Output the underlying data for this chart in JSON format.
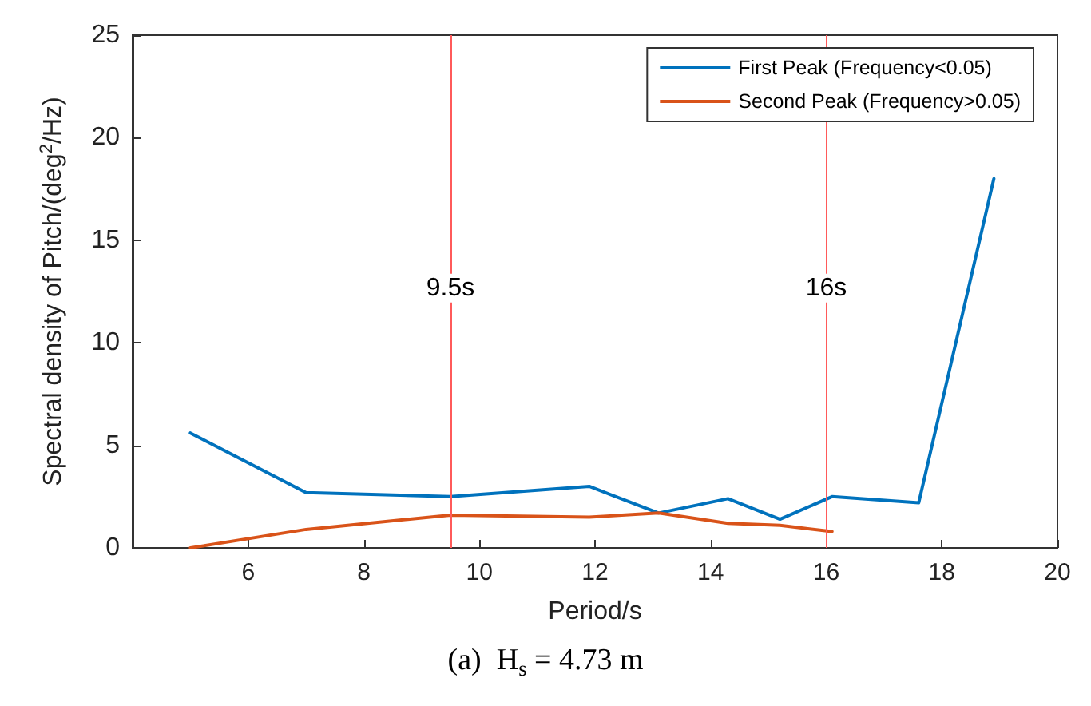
{
  "chart_data": {
    "type": "line",
    "title": "(a)  H$_{s}$ = 4.73 m",
    "xlabel": "Period/s",
    "ylabel": "Spectral density of Pitch/(deg$^{2}$/Hz)",
    "xlim": [
      4,
      20
    ],
    "xticks": [
      {
        "value": 4,
        "label": null
      },
      6,
      8,
      10,
      12,
      14,
      16,
      18,
      20
    ],
    "ylim": [
      0,
      25
    ],
    "yticks": [
      0,
      5,
      10,
      15,
      20,
      25
    ],
    "grid": false,
    "legend": "top right",
    "marker": "none",
    "line_style": "solid",
    "series": [
      {
        "name": "First Peak (Frequency<0.05)",
        "color": "#0072bd",
        "x": [
          5,
          7,
          9.5,
          11.9,
          13.1,
          14.3,
          15.2,
          16.1,
          17.6,
          18.9
        ],
        "values": [
          5.6,
          2.7,
          2.5,
          3.0,
          1.7,
          2.4,
          1.4,
          2.5,
          2.2,
          18
        ]
      },
      {
        "name": "Second Peak (Frequency>0.05)",
        "color": "#d95319",
        "x": [
          5,
          7,
          9.5,
          11.9,
          13.1,
          14.3,
          15.2,
          16.1
        ],
        "values": [
          0,
          0.9,
          1.6,
          1.5,
          1.7,
          1.2,
          1.1,
          0.8
        ]
      }
    ],
    "ref_lines": [
      {
        "axis": "x",
        "value": 9.5,
        "label": "9.5s",
        "color": "#ff5a5a"
      },
      {
        "axis": "x",
        "value": 16,
        "label": "16s",
        "color": "#ff5a5a"
      }
    ]
  }
}
